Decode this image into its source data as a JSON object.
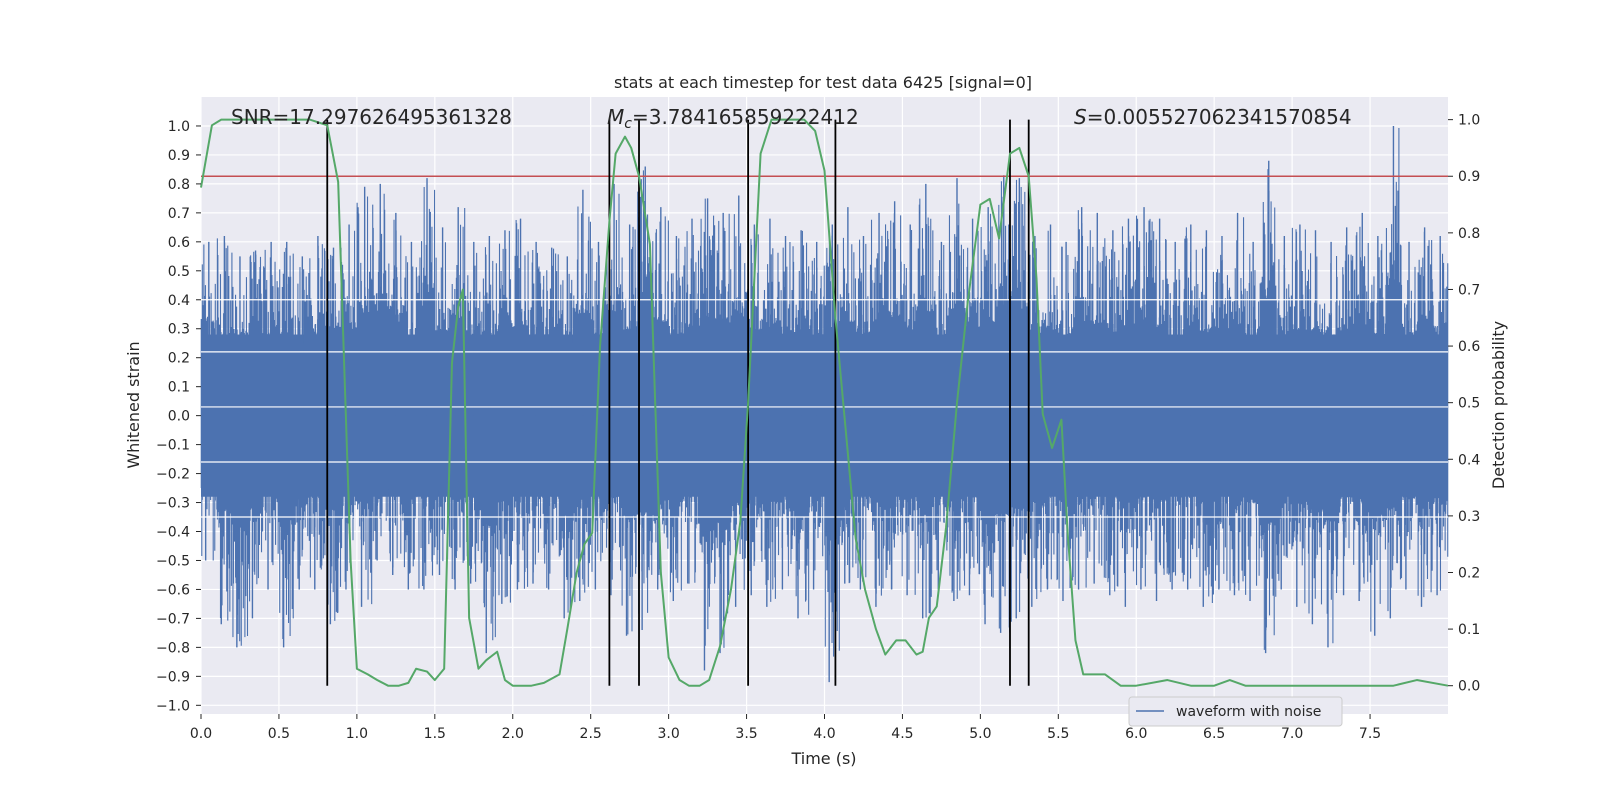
{
  "chart_data": {
    "type": "line",
    "title": "stats at each timestep for test data 6425 [signal=0]",
    "xlabel": "Time (s)",
    "ylabel_left": "Whitened strain",
    "ylabel_right": "Detection probability",
    "xlim": [
      0.0,
      8.0
    ],
    "ylim_left": [
      -1.03,
      1.1
    ],
    "ylim_right": [
      -0.05,
      1.04
    ],
    "x_ticks": [
      "0.0",
      "0.5",
      "1.0",
      "1.5",
      "2.0",
      "2.5",
      "3.0",
      "3.5",
      "4.0",
      "4.5",
      "5.0",
      "5.5",
      "6.0",
      "6.5",
      "7.0",
      "7.5"
    ],
    "y_left_ticks": [
      "1.0",
      "0.9",
      "0.8",
      "0.7",
      "0.6",
      "0.5",
      "0.4",
      "0.3",
      "0.2",
      "0.1",
      "0.0",
      "−0.1",
      "−0.2",
      "−0.3",
      "−0.4",
      "−0.5",
      "−0.6",
      "−0.7",
      "−0.8",
      "−0.9",
      "−1.0"
    ],
    "y_right_ticks": [
      "1.0",
      "0.9",
      "0.8",
      "0.7",
      "0.6",
      "0.5",
      "0.4",
      "0.3",
      "0.2",
      "0.1",
      "0.0"
    ],
    "grid": true,
    "annotations": {
      "snr": "SNR=17.297626495361328",
      "mc_symbol": "M",
      "mc_sub": "c",
      "mc_value": "=3.784165859222412",
      "s_symbol": "S",
      "s_value": "=0.005527062341570854"
    },
    "threshold": {
      "value": 0.9,
      "axis": "right",
      "color": "#c44e52"
    },
    "vertical_lines": [
      0.81,
      2.62,
      2.81,
      3.51,
      4.07,
      5.19,
      5.31
    ],
    "vertical_line_range_right": [
      0.0,
      1.0
    ],
    "waveform_envelope": {
      "name": "waveform with noise",
      "color": "#4c72b0",
      "step": 0.1,
      "upper": [
        0.6,
        0.62,
        0.55,
        0.57,
        0.6,
        0.6,
        0.55,
        0.62,
        0.58,
        0.66,
        0.79,
        0.8,
        0.7,
        0.6,
        0.82,
        0.65,
        0.72,
        0.6,
        0.62,
        0.64,
        0.68,
        0.6,
        0.58,
        0.55,
        0.78,
        0.6,
        0.8,
        0.66,
        0.86,
        0.72,
        0.62,
        0.68,
        0.75,
        0.7,
        0.76,
        0.66,
        0.68,
        0.62,
        0.64,
        0.6,
        0.66,
        0.72,
        0.62,
        0.7,
        0.74,
        0.66,
        0.8,
        0.6,
        0.82,
        0.68,
        0.72,
        0.83,
        0.82,
        0.62,
        0.66,
        0.6,
        0.72,
        0.7,
        0.64,
        0.68,
        0.72,
        0.68,
        0.6,
        0.66,
        0.64,
        0.62,
        0.7,
        0.6,
        0.88,
        0.62,
        0.66,
        0.64,
        0.6,
        0.65,
        0.7,
        0.62,
        1.0,
        0.6,
        0.65,
        0.62
      ],
      "lower": [
        -0.5,
        -0.72,
        -0.8,
        -0.7,
        -0.6,
        -0.8,
        -0.6,
        -0.6,
        -0.72,
        -0.6,
        -0.66,
        -0.5,
        -0.55,
        -0.6,
        -0.6,
        -0.55,
        -0.6,
        -0.58,
        -0.82,
        -0.65,
        -0.6,
        -0.58,
        -0.6,
        -0.7,
        -0.64,
        -0.6,
        -0.62,
        -0.76,
        -0.74,
        -0.6,
        -0.64,
        -0.58,
        -0.88,
        -0.82,
        -0.66,
        -0.62,
        -0.66,
        -0.6,
        -0.7,
        -0.6,
        -0.92,
        -0.58,
        -0.6,
        -0.66,
        -0.6,
        -0.62,
        -0.7,
        -0.6,
        -0.64,
        -0.62,
        -0.72,
        -0.75,
        -0.7,
        -0.66,
        -0.6,
        -0.64,
        -0.6,
        -0.58,
        -0.62,
        -0.66,
        -0.6,
        -0.64,
        -0.6,
        -0.6,
        -0.66,
        -0.6,
        -0.62,
        -0.64,
        -0.82,
        -0.6,
        -0.66,
        -0.72,
        -0.8,
        -0.62,
        -0.64,
        -0.76,
        -0.7,
        -0.6,
        -0.66,
        -0.62
      ]
    },
    "series": [
      {
        "name": "",
        "color": "#55a868",
        "axis": "right",
        "x": [
          0.0,
          0.07,
          0.13,
          0.2,
          0.4,
          0.6,
          0.7,
          0.81,
          0.88,
          0.96,
          1.0,
          1.07,
          1.13,
          1.2,
          1.27,
          1.33,
          1.38,
          1.45,
          1.5,
          1.56,
          1.61,
          1.65,
          1.68,
          1.72,
          1.78,
          1.83,
          1.9,
          1.95,
          2.0,
          2.05,
          2.12,
          2.2,
          2.3,
          2.35,
          2.41,
          2.46,
          2.51,
          2.56,
          2.62,
          2.66,
          2.72,
          2.76,
          2.81,
          2.88,
          2.95,
          3.0,
          3.07,
          3.13,
          3.2,
          3.26,
          3.33,
          3.4,
          3.46,
          3.51,
          3.59,
          3.66,
          3.73,
          3.8,
          3.87,
          3.94,
          4.0,
          4.07,
          4.14,
          4.2,
          4.26,
          4.33,
          4.39,
          4.46,
          4.52,
          4.59,
          4.63,
          4.67,
          4.72,
          4.78,
          4.85,
          4.92,
          5.0,
          5.06,
          5.12,
          5.19,
          5.25,
          5.31,
          5.36,
          5.4,
          5.46,
          5.52,
          5.56,
          5.61,
          5.66,
          5.72,
          5.8,
          5.9,
          6.0,
          6.2,
          6.35,
          6.5,
          6.6,
          6.7,
          6.8,
          7.0,
          7.2,
          7.5,
          7.65,
          7.8,
          8.0
        ],
        "y": [
          0.88,
          0.99,
          1.0,
          1.0,
          1.0,
          1.0,
          1.0,
          0.99,
          0.89,
          0.22,
          0.03,
          0.02,
          0.01,
          0.0,
          0.0,
          0.005,
          0.03,
          0.025,
          0.01,
          0.03,
          0.57,
          0.67,
          0.7,
          0.12,
          0.03,
          0.045,
          0.06,
          0.01,
          0.0,
          0.0,
          0.0,
          0.005,
          0.02,
          0.1,
          0.2,
          0.25,
          0.27,
          0.6,
          0.82,
          0.94,
          0.97,
          0.95,
          0.9,
          0.78,
          0.2,
          0.05,
          0.01,
          0.0,
          0.0,
          0.01,
          0.07,
          0.17,
          0.29,
          0.5,
          0.94,
          1.0,
          1.0,
          1.0,
          1.0,
          0.98,
          0.91,
          0.65,
          0.44,
          0.26,
          0.17,
          0.1,
          0.055,
          0.08,
          0.08,
          0.055,
          0.06,
          0.12,
          0.14,
          0.28,
          0.5,
          0.68,
          0.85,
          0.86,
          0.79,
          0.94,
          0.95,
          0.9,
          0.72,
          0.48,
          0.42,
          0.47,
          0.27,
          0.08,
          0.02,
          0.02,
          0.02,
          0.0,
          0.0,
          0.01,
          0.0,
          0.0,
          0.01,
          0.0,
          0.0,
          0.0,
          0.0,
          0.0,
          0.0,
          0.01,
          0.0
        ]
      }
    ],
    "legend": {
      "label": "waveform with noise",
      "placement": "lower right"
    }
  }
}
